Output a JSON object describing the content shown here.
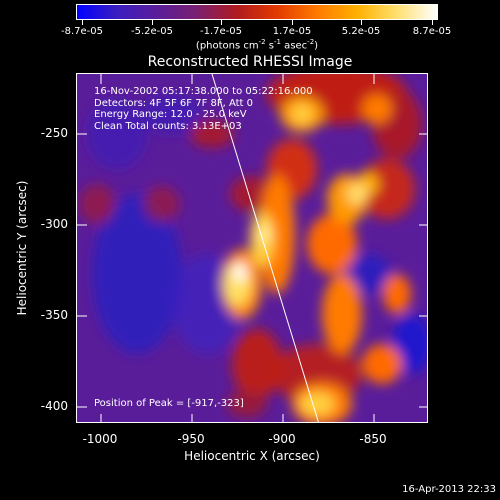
{
  "colorbar": {
    "tick_labels": [
      "-8.7e-05",
      "-5.2e-05",
      "-1.7e-05",
      "1.7e-05",
      "5.2e-05",
      "8.7e-05"
    ],
    "units_main": "(photons cm",
    "units_exp1": "-2",
    "units_mid": " s",
    "units_exp2": "-1",
    "units_mid2": " asec",
    "units_exp3": "-2",
    "units_close": ")",
    "colormap": [
      "#0000ff",
      "#3b1fbf",
      "#5a1d9a",
      "#7a2070",
      "#b01a20",
      "#e23a00",
      "#ff7a00",
      "#ffb000",
      "#ffe070",
      "#ffffff"
    ],
    "range": [
      -8.7e-05,
      8.7e-05
    ]
  },
  "title": "Reconstructed RHESSI Image",
  "annotations": [
    "16-Nov-2002 05:17:38.000 to 05:22:16.000",
    "Detectors: 4F 5F 6F 7F 8F, Att 0",
    "Energy Range: 12.0 - 25.0 keV",
    "Clean     Total counts: 3.13E+03"
  ],
  "peak_label": "Position of Peak = [-917,-323]",
  "xaxis": {
    "title": "Heliocentric X (arcsec)",
    "tick_labels": [
      "-1000",
      "-950",
      "-900",
      "-850"
    ],
    "range": [
      -1010,
      -818
    ]
  },
  "yaxis": {
    "title": "Heliocentric Y (arcsec)",
    "tick_labels": [
      "-250",
      "-300",
      "-350",
      "-400"
    ],
    "range": [
      -409,
      -218
    ]
  },
  "footer_timestamp": "16-Apr-2013 22:33"
}
